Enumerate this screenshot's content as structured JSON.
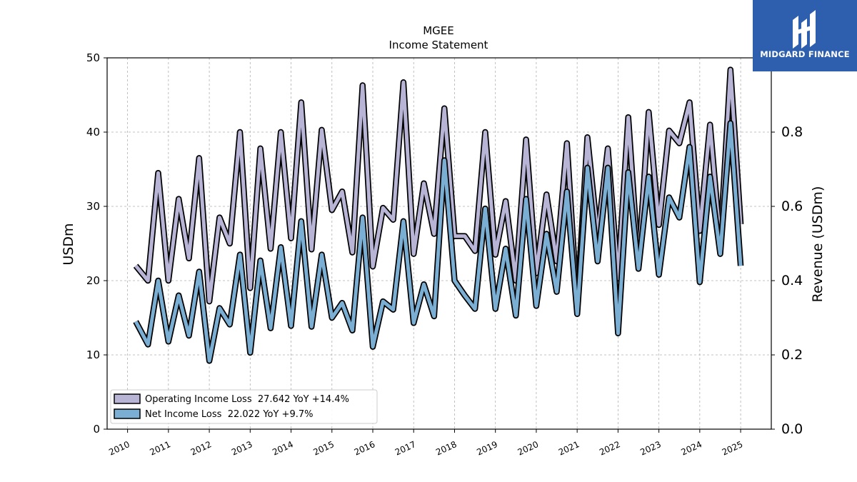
{
  "brand": {
    "logo_text": "MIDGARD FINANCE",
    "logo_bg": "#2e5fae"
  },
  "chart_data": {
    "type": "line",
    "title": "MGEE",
    "subtitle": "Income Statement",
    "ylabel": "USDm",
    "ylabel_right": "Revenue (USDm)",
    "ylim": [
      0,
      50
    ],
    "ylim_right": [
      0.0,
      1.0
    ],
    "yticks": [
      "0",
      "10",
      "20",
      "30",
      "40",
      "50"
    ],
    "yticks_right": [
      "0.0",
      "0.2",
      "0.4",
      "0.6",
      "0.8"
    ],
    "xlim": [
      2009.5,
      2025.75
    ],
    "xticks": [
      "2010",
      "2011",
      "2012",
      "2013",
      "2014",
      "2015",
      "2016",
      "2017",
      "2018",
      "2019",
      "2020",
      "2021",
      "2022",
      "2023",
      "2024",
      "2025"
    ],
    "grid": true,
    "legend_position": "lower-left",
    "series": [
      {
        "name": "Operating Income Loss",
        "legend": "Operating Income Loss  27.642 YoY +14.4%",
        "color": "#b8b4d6",
        "x": [
          2010.2,
          2010.5,
          2010.75,
          2011.0,
          2011.25,
          2011.5,
          2011.75,
          2012.0,
          2012.25,
          2012.5,
          2012.75,
          2013.0,
          2013.25,
          2013.5,
          2013.75,
          2014.0,
          2014.25,
          2014.5,
          2014.75,
          2015.0,
          2015.25,
          2015.5,
          2015.75,
          2016.0,
          2016.25,
          2016.5,
          2016.75,
          2017.0,
          2017.25,
          2017.5,
          2017.75,
          2018.0,
          2018.25,
          2018.5,
          2018.75,
          2019.0,
          2019.25,
          2019.5,
          2019.75,
          2020.0,
          2020.25,
          2020.5,
          2020.75,
          2021.0,
          2021.25,
          2021.5,
          2021.75,
          2022.0,
          2022.25,
          2022.5,
          2022.75,
          2023.0,
          2023.25,
          2023.5,
          2023.75,
          2024.0,
          2024.25,
          2024.5,
          2024.75,
          2025.0
        ],
        "values": [
          22.0,
          20.0,
          34.5,
          20.0,
          31.0,
          23.0,
          36.5,
          17.2,
          28.5,
          25.0,
          40.0,
          19.0,
          37.8,
          24.3,
          40.0,
          25.7,
          44.0,
          24.2,
          40.3,
          29.5,
          32.0,
          23.8,
          46.3,
          21.9,
          29.8,
          28.2,
          46.7,
          23.6,
          33.1,
          26.3,
          43.2,
          26.0,
          26.0,
          24.0,
          40.0,
          23.5,
          30.7,
          20.0,
          39.0,
          21.0,
          31.6,
          22.6,
          38.5,
          16.5,
          39.3,
          26.0,
          37.8,
          20.3,
          42.0,
          22.0,
          42.7,
          27.5,
          40.2,
          38.5,
          44.0,
          26.7,
          41.0,
          25.0,
          48.4,
          27.6
        ]
      },
      {
        "name": "Net Income Loss",
        "legend": "Net Income Loss  22.022 YoY +9.7%",
        "color": "#7aaed3",
        "x": [
          2010.2,
          2010.5,
          2010.75,
          2011.0,
          2011.25,
          2011.5,
          2011.75,
          2012.0,
          2012.25,
          2012.5,
          2012.75,
          2013.0,
          2013.25,
          2013.5,
          2013.75,
          2014.0,
          2014.25,
          2014.5,
          2014.75,
          2015.0,
          2015.25,
          2015.5,
          2015.75,
          2016.0,
          2016.25,
          2016.5,
          2016.75,
          2017.0,
          2017.25,
          2017.5,
          2017.75,
          2018.0,
          2018.25,
          2018.5,
          2018.75,
          2019.0,
          2019.25,
          2019.5,
          2019.75,
          2020.0,
          2020.25,
          2020.5,
          2020.75,
          2021.0,
          2021.25,
          2021.5,
          2021.75,
          2022.0,
          2022.25,
          2022.5,
          2022.75,
          2023.0,
          2023.25,
          2023.5,
          2023.75,
          2024.0,
          2024.25,
          2024.5,
          2024.75,
          2025.0
        ],
        "values": [
          14.5,
          11.4,
          20.0,
          11.8,
          18.0,
          12.6,
          21.2,
          9.2,
          16.3,
          14.1,
          23.5,
          10.3,
          22.7,
          13.6,
          24.5,
          13.9,
          28.0,
          13.8,
          23.5,
          15.0,
          17.0,
          13.3,
          28.5,
          11.1,
          17.2,
          16.1,
          28.0,
          14.3,
          19.5,
          15.2,
          36.2,
          20.0,
          18.0,
          16.2,
          29.7,
          16.2,
          24.3,
          15.3,
          31.0,
          16.6,
          26.3,
          18.5,
          32.0,
          15.5,
          35.2,
          22.6,
          35.2,
          12.9,
          34.6,
          21.6,
          34.0,
          20.8,
          31.2,
          28.5,
          38.0,
          19.8,
          34.0,
          23.6,
          41.2,
          22.0
        ]
      }
    ]
  }
}
